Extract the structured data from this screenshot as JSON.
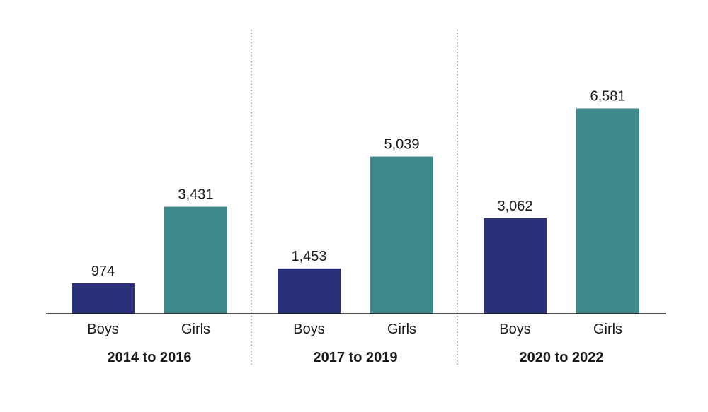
{
  "chart_data": {
    "type": "bar",
    "title": "",
    "xlabel": "",
    "ylabel": "",
    "ylim": [
      0,
      7000
    ],
    "grid": false,
    "groups": [
      {
        "label": "2014 to 2016",
        "bars": [
          {
            "category": "Boys",
            "value": 974,
            "value_label": "974"
          },
          {
            "category": "Girls",
            "value": 3431,
            "value_label": "3,431"
          }
        ]
      },
      {
        "label": "2017 to 2019",
        "bars": [
          {
            "category": "Boys",
            "value": 1453,
            "value_label": "1,453"
          },
          {
            "category": "Girls",
            "value": 5039,
            "value_label": "5,039"
          }
        ]
      },
      {
        "label": "2020 to 2022",
        "bars": [
          {
            "category": "Boys",
            "value": 3062,
            "value_label": "3,062"
          },
          {
            "category": "Girls",
            "value": 6581,
            "value_label": "6,581"
          }
        ]
      }
    ],
    "colors": {
      "Boys": "#2b3178",
      "Girls": "#3e878a"
    }
  }
}
